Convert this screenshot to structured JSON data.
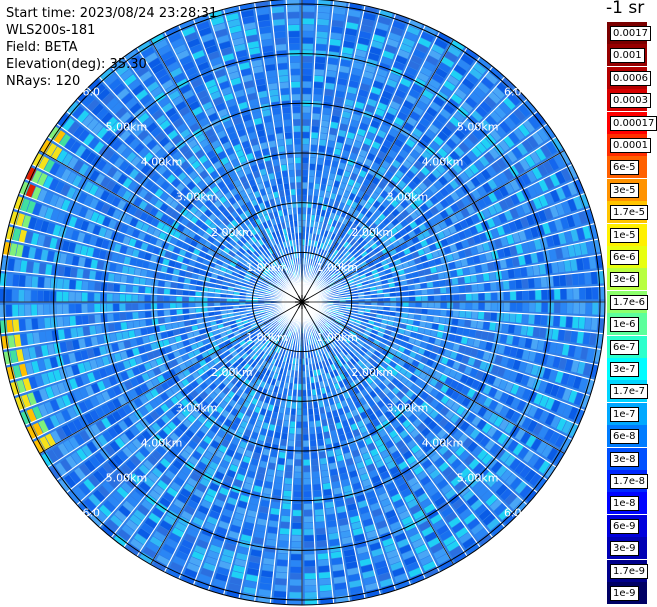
{
  "header": {
    "start_time": "Start time: 2023/08/24 23:28:31",
    "device": "WLS200s-181",
    "field": "Field: BETA",
    "elevation": "Elevation(deg): 35.30",
    "nrays": "NRays: 120"
  },
  "ppi": {
    "rings_km": [
      1,
      2,
      3,
      4,
      5,
      6
    ],
    "ring_labels": [
      "1.00km",
      "2.00km",
      "3.00km",
      "4.00km",
      "5.00km",
      "6.0"
    ],
    "nrays": 120,
    "max_range_km": 6.1
  },
  "colorbar": {
    "unit_label": "-1 sr",
    "ticks": [
      "0.0017",
      "0.001",
      "0.0006",
      "0.0003",
      "0.00017",
      "0.0001",
      "6e-5",
      "3e-5",
      "1.7e-5",
      "1e-5",
      "6e-6",
      "3e-6",
      "1.7e-6",
      "1e-6",
      "6e-7",
      "3e-7",
      "1.7e-7",
      "1e-7",
      "6e-8",
      "3e-8",
      "1.7e-8",
      "1e-8",
      "6e-9",
      "3e-9",
      "1.7e-9",
      "1e-9"
    ],
    "colors": [
      "#7a0000",
      "#960000",
      "#b40000",
      "#d70000",
      "#ff0000",
      "#ff2e00",
      "#ff6000",
      "#ff9200",
      "#ffc400",
      "#fff000",
      "#e8ff10",
      "#b8ff40",
      "#8cff6c",
      "#5cff9c",
      "#2cffcc",
      "#00fcff",
      "#00d4ff",
      "#00a8ff",
      "#007cff",
      "#0050ff",
      "#0028ff",
      "#0004ff",
      "#0000dc",
      "#0000b4",
      "#00008c",
      "#000064"
    ]
  }
}
